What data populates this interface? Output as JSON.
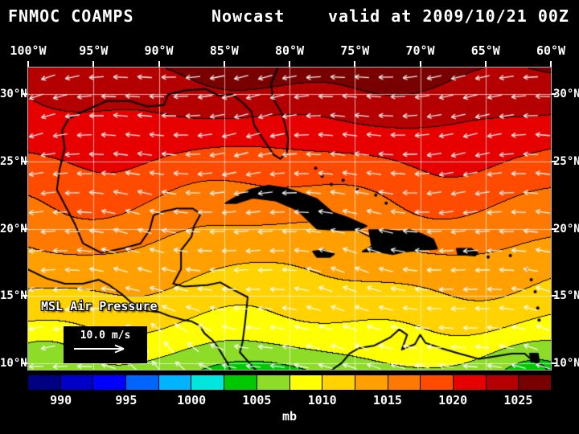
{
  "title": {
    "left": "FNMOC COAMPS",
    "center": "Nowcast",
    "right": "valid at 2009/10/21 00Z"
  },
  "map": {
    "lon_labels": [
      "100°W",
      "95°W",
      "90°W",
      "85°W",
      "80°W",
      "75°W",
      "70°W",
      "65°W",
      "60°W"
    ],
    "lat_labels": [
      "30°N",
      "25°N",
      "20°N",
      "15°N",
      "10°N"
    ],
    "field_label": "MSL Air Pressure",
    "wind_ref_label": "10.0 m/s"
  },
  "colorbar": {
    "unit": "mb",
    "tick_labels": [
      "990",
      "995",
      "1000",
      "1005",
      "1010",
      "1015",
      "1020",
      "1025"
    ],
    "min_value_mb": 987.5,
    "step_mb": 2.5,
    "colors": [
      "#000082",
      "#0000c8",
      "#0000ff",
      "#0064ff",
      "#00b4ff",
      "#00e6dc",
      "#00c800",
      "#8cdc28",
      "#ffff00",
      "#ffd200",
      "#ffa000",
      "#ff7800",
      "#ff4b00",
      "#e60000",
      "#b40000",
      "#780000"
    ]
  },
  "chart_data": {
    "type": "heatmap",
    "title": "FNMOC COAMPS Nowcast valid at 2009/10/21 00Z",
    "field": "MSL Air Pressure",
    "units": "mb",
    "lon_extent": [
      "100°W",
      "60°W"
    ],
    "lat_extent": [
      "10°N",
      "30°N"
    ],
    "levels_mb": [
      990,
      995,
      1000,
      1005,
      1010,
      1015,
      1020,
      1025
    ],
    "wind_reference": "10.0 m/s",
    "summary": "Pressure decreases from about 1022-1025 mb along 30N (darkest reds near 85W-70W) to about 1005-1010 mb near 10N, with sub-1005 mb green patches along the southern edge; white wind vectors show broadly easterly trade flow."
  }
}
